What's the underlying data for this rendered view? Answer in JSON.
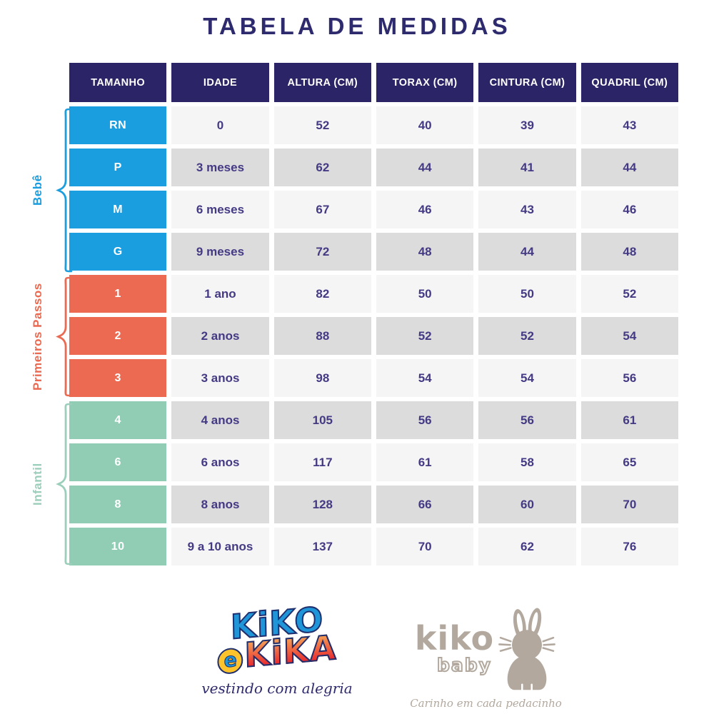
{
  "title": "TABELA DE MEDIDAS",
  "table": {
    "headers": [
      "TAMANHO",
      "IDADE",
      "ALTURA (CM)",
      "TORAX (CM)",
      "CINTURA (CM)",
      "QUADRIL (CM)"
    ],
    "groups": [
      {
        "label": "Bebê",
        "color": "#1b9ee0",
        "rows": [
          [
            "RN",
            "0",
            "52",
            "40",
            "39",
            "43"
          ],
          [
            "P",
            "3 meses",
            "62",
            "44",
            "41",
            "44"
          ],
          [
            "M",
            "6 meses",
            "67",
            "46",
            "43",
            "46"
          ],
          [
            "G",
            "9 meses",
            "72",
            "48",
            "44",
            "48"
          ]
        ]
      },
      {
        "label": "Primeiros Passos",
        "color": "#eb6a51",
        "rows": [
          [
            "1",
            "1 ano",
            "82",
            "50",
            "50",
            "52"
          ],
          [
            "2",
            "2 anos",
            "88",
            "52",
            "52",
            "54"
          ],
          [
            "3",
            "3 anos",
            "98",
            "54",
            "54",
            "56"
          ]
        ]
      },
      {
        "label": "Infantil",
        "color": "#90cdb4",
        "rows": [
          [
            "4",
            "4 anos",
            "105",
            "56",
            "56",
            "61"
          ],
          [
            "6",
            "6 anos",
            "117",
            "61",
            "58",
            "65"
          ],
          [
            "8",
            "8 anos",
            "128",
            "66",
            "60",
            "70"
          ],
          [
            "10",
            "9 a 10 anos",
            "137",
            "70",
            "62",
            "76"
          ]
        ]
      }
    ]
  },
  "footer": {
    "kiko_e_kika": {
      "word1": "KiKO",
      "e": "e",
      "word2": "KiKA",
      "tagline": "vestindo com alegria"
    },
    "kiko_baby": {
      "name": "kiko",
      "sub": "baby",
      "tagline": "Carinho em cada pedacinho"
    }
  },
  "colors": {
    "header_bg": "#2b2466",
    "text_navy": "#443a84",
    "row_light": "#f5f5f6",
    "row_dark": "#dcdcdd",
    "bebe_blue": "#1b9ee0",
    "primeiros_coral": "#eb6a51",
    "infantil_mint": "#90cdb4",
    "baby_taupe": "#b2a89d"
  }
}
